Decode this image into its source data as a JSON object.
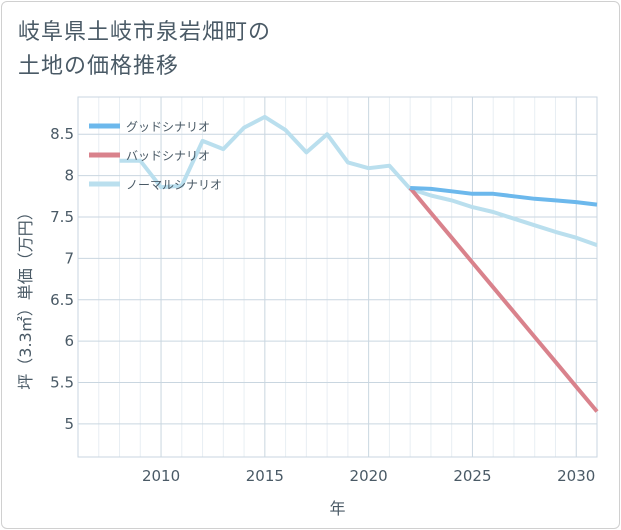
{
  "title_line1": "岐阜県土岐市泉岩畑町の",
  "title_line2": "土地の価格推移",
  "chart_data": {
    "type": "line",
    "xlabel": "年",
    "ylabel": "坪（3.3㎡）単価（万円）",
    "xlim": [
      2006,
      2031
    ],
    "ylim": [
      4.6,
      8.95
    ],
    "x_ticks": [
      2010,
      2015,
      2020,
      2025,
      2030
    ],
    "y_ticks": [
      5,
      5.5,
      6,
      6.5,
      7,
      7.5,
      8,
      8.5
    ],
    "grid": true,
    "legend_position": "top-left",
    "series": [
      {
        "name": "グッドシナリオ",
        "color": "#6cb8ec",
        "x": [
          2022,
          2023,
          2024,
          2025,
          2026,
          2027,
          2028,
          2029,
          2030,
          2031
        ],
        "y": [
          7.85,
          7.84,
          7.81,
          7.78,
          7.78,
          7.75,
          7.72,
          7.7,
          7.68,
          7.65
        ]
      },
      {
        "name": "バッドシナリオ",
        "color": "#d9828c",
        "x": [
          2022,
          2023,
          2024,
          2025,
          2026,
          2027,
          2028,
          2029,
          2030,
          2031
        ],
        "y": [
          7.85,
          7.55,
          7.25,
          6.95,
          6.65,
          6.35,
          6.05,
          5.75,
          5.45,
          5.15
        ]
      },
      {
        "name": "ノーマルシナリオ",
        "color": "#badfee",
        "x": [
          2008,
          2009,
          2010,
          2011,
          2012,
          2013,
          2014,
          2015,
          2016,
          2017,
          2018,
          2019,
          2020,
          2021,
          2022,
          2023,
          2024,
          2025,
          2026,
          2027,
          2028,
          2029,
          2030,
          2031
        ],
        "y": [
          8.18,
          8.18,
          7.86,
          7.88,
          8.42,
          8.32,
          8.58,
          8.71,
          8.55,
          8.28,
          8.5,
          8.16,
          8.09,
          8.12,
          7.84,
          7.76,
          7.7,
          7.62,
          7.56,
          7.48,
          7.4,
          7.32,
          7.25,
          7.16
        ]
      }
    ]
  }
}
